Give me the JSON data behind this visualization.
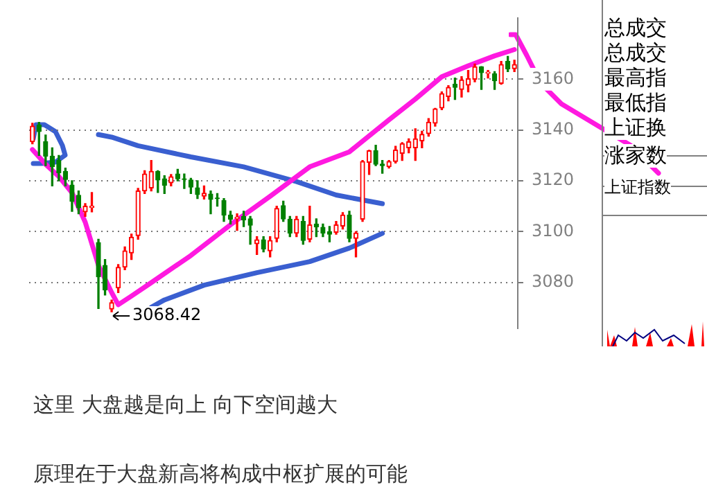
{
  "chart_data": {
    "type": "candlestick",
    "categories": [
      null,
      null,
      null,
      null,
      null,
      null,
      null,
      null,
      null,
      null,
      null,
      null,
      null,
      null,
      null,
      null,
      null,
      null,
      null,
      null,
      null,
      null,
      null,
      null,
      null,
      null,
      null,
      null,
      null,
      null,
      null,
      null,
      null,
      null,
      null,
      null,
      null,
      null,
      null,
      null,
      null,
      null,
      null,
      null,
      null,
      null,
      null,
      null,
      null,
      null,
      null,
      null,
      null,
      null,
      null,
      null,
      null,
      null,
      null,
      null,
      null,
      null,
      null,
      null,
      null,
      null,
      null,
      null,
      null,
      null,
      null,
      null,
      null,
      null
    ],
    "ohlc": [
      [
        3135.4,
        3142.7,
        3134.6,
        3141.5
      ],
      [
        3142,
        3143,
        3130,
        3139.4
      ],
      [
        3135.4,
        3138,
        3126,
        3129.7
      ],
      [
        3129.7,
        3133,
        3118,
        3125.6
      ],
      [
        3128,
        3130,
        3120,
        3123.2
      ],
      [
        3123.7,
        3125,
        3118,
        3120.5
      ],
      [
        3118.3,
        3120,
        3108,
        3111.9
      ],
      [
        3114.3,
        3116,
        3107,
        3109.4
      ],
      [
        3107.8,
        3111,
        3106,
        3110
      ],
      [
        3109.5,
        3115.4,
        3107.8,
        3110
      ],
      [
        3095.7,
        3097,
        3069.7,
        3082.2
      ],
      [
        3086.7,
        3089,
        3075,
        3077
      ],
      [
        3069.5,
        3073,
        3068.42,
        3072
      ],
      [
        3077.8,
        3087,
        3076,
        3085.9
      ],
      [
        3086,
        3094,
        3085,
        3092.4
      ],
      [
        3091.6,
        3099,
        3089,
        3097.8
      ],
      [
        3098.4,
        3117,
        3097,
        3116
      ],
      [
        3116,
        3124,
        3115,
        3122.7
      ],
      [
        3117.2,
        3128,
        3116,
        3123.7
      ],
      [
        3123.7,
        3124,
        3115.4,
        3120.3
      ],
      [
        3120.8,
        3122,
        3115,
        3118.3
      ],
      [
        3119.2,
        3122.5,
        3118,
        3121.6
      ],
      [
        3122.7,
        3124.5,
        3120,
        3120.8
      ],
      [
        3120.8,
        3122.7,
        3117,
        3120.5
      ],
      [
        3120.3,
        3121,
        3115,
        3117.5
      ],
      [
        3117.2,
        3120,
        3113,
        3114.6
      ],
      [
        3114,
        3118,
        3112.8,
        3115.1
      ],
      [
        3114.8,
        3116,
        3107,
        3112.7
      ],
      [
        3113.2,
        3115,
        3110,
        3113
      ],
      [
        3112.2,
        3113,
        3104,
        3106.5
      ],
      [
        3106.5,
        3108,
        3103,
        3104.9
      ],
      [
        3105.2,
        3107,
        3100.5,
        3105.6
      ],
      [
        3106,
        3108,
        3102,
        3104.6
      ],
      [
        3105,
        3106,
        3095,
        3102.5
      ],
      [
        3095.2,
        3098,
        3091,
        3096.8
      ],
      [
        3096.8,
        3098,
        3092,
        3093.2
      ],
      [
        3092.4,
        3098,
        3090,
        3096.5
      ],
      [
        3097.3,
        3110,
        3096,
        3109.1
      ],
      [
        3110.2,
        3112,
        3104,
        3105
      ],
      [
        3104.9,
        3106,
        3098,
        3099.4
      ],
      [
        3099.4,
        3106,
        3098,
        3104.9
      ],
      [
        3104,
        3106,
        3095,
        3096.5
      ],
      [
        3097,
        3110,
        3096,
        3102.6
      ],
      [
        3103,
        3105,
        3098,
        3101.8
      ],
      [
        3101.7,
        3103,
        3098,
        3099.4
      ],
      [
        3100,
        3102,
        3096,
        3099
      ],
      [
        3099.7,
        3104,
        3099,
        3102.6
      ],
      [
        3102.2,
        3107.5,
        3101,
        3106.5
      ],
      [
        3106.5,
        3108,
        3096,
        3097.3
      ],
      [
        3097.3,
        3100,
        3090,
        3099.4
      ],
      [
        3104.9,
        3128,
        3104,
        3127.6
      ],
      [
        3127.3,
        3132,
        3122.5,
        3131.8
      ],
      [
        3131.8,
        3134,
        3126,
        3126.5
      ],
      [
        3126.6,
        3128,
        3123,
        3126
      ],
      [
        3125.6,
        3128,
        3125,
        3127.6
      ],
      [
        3127.6,
        3133.6,
        3127,
        3132.1
      ],
      [
        3130.8,
        3135,
        3128,
        3134.6
      ],
      [
        3133,
        3136.5,
        3131,
        3135.4
      ],
      [
        3133,
        3140.5,
        3128,
        3136.5
      ],
      [
        3135.7,
        3139.5,
        3133,
        3138.3
      ],
      [
        3138.6,
        3144.5,
        3137.6,
        3143.1
      ],
      [
        3142.7,
        3148.5,
        3141.5,
        3148.3
      ],
      [
        3148.7,
        3155,
        3148,
        3154.3
      ],
      [
        3153.2,
        3157.5,
        3151.5,
        3156.8
      ],
      [
        3158,
        3160.5,
        3152,
        3156.8
      ],
      [
        3156,
        3161,
        3153,
        3159.7
      ],
      [
        3157.7,
        3163.5,
        3155,
        3160.2
      ],
      [
        3160,
        3166,
        3159,
        3164.9
      ],
      [
        3164.9,
        3165,
        3156,
        3162.6
      ],
      [
        3162.3,
        3163.5,
        3160.5,
        3162.8
      ],
      [
        3162.1,
        3163,
        3156,
        3159.4
      ],
      [
        3158.4,
        3167,
        3158,
        3165.8
      ],
      [
        3167,
        3169,
        3163,
        3164.1
      ],
      [
        3164.2,
        3167.5,
        3163,
        3165.8
      ]
    ],
    "colors": [
      "#ff0000",
      "#008000",
      "#008000",
      "#008000",
      "#008000",
      "#008000",
      "#008000",
      "#008000",
      "#ff0000",
      "#ff0000",
      "#008000",
      "#008000",
      "#ff0000",
      "#ff0000",
      "#ff0000",
      "#ff0000",
      "#ff0000",
      "#ff0000",
      "#ff0000",
      "#008000",
      "#008000",
      "#ff0000",
      "#008000",
      "#008000",
      "#008000",
      "#008000",
      "#ff0000",
      "#008000",
      "#008000",
      "#008000",
      "#008000",
      "#ff0000",
      "#008000",
      "#008000",
      "#ff0000",
      "#008000",
      "#ff0000",
      "#ff0000",
      "#008000",
      "#008000",
      "#ff0000",
      "#008000",
      "#ff0000",
      "#008000",
      "#008000",
      "#008000",
      "#ff0000",
      "#ff0000",
      "#008000",
      "#ff0000",
      "#ff0000",
      "#ff0000",
      "#008000",
      "#008000",
      "#ff0000",
      "#ff0000",
      "#ff0000",
      "#ff0000",
      "#ff0000",
      "#ff0000",
      "#ff0000",
      "#ff0000",
      "#ff0000",
      "#ff0000",
      "#008000",
      "#ff0000",
      "#ff0000",
      "#ff0000",
      "#008000",
      "#ff0000",
      "#008000",
      "#ff0000",
      "#008000",
      "#ff0000"
    ],
    "series": [
      {
        "type": "line",
        "color": "#ff19e0",
        "values": [
          3132.3,
          null,
          3126.5,
          null,
          3121.7,
          null,
          3115.3,
          null,
          3103.7,
          null,
          3086.7,
          null,
          3076,
          3071.2,
          null,
          3074.6,
          null,
          null,
          3079.9,
          null,
          null,
          null,
          null,
          null,
          3090.6,
          null,
          null,
          null,
          null,
          null,
          3102.7,
          null,
          null,
          null,
          null,
          null,
          3113.9,
          null,
          null,
          null,
          null,
          null,
          3125.5,
          null,
          null,
          null,
          null,
          null,
          3131.4,
          null,
          null,
          null,
          null,
          null,
          3144,
          null,
          null,
          null,
          3152.2,
          null,
          null,
          null,
          3161,
          null,
          null,
          null,
          3165.3,
          null,
          null,
          null,
          3169.2,
          null,
          null,
          3171.7
        ]
      },
      {
        "type": "line",
        "color": "#3a5fd0",
        "values": [
          null,
          null,
          null,
          null,
          null,
          null,
          null,
          null,
          null,
          null,
          3138.2,
          null,
          3137.2,
          null,
          null,
          null,
          3133.8,
          null,
          null,
          null,
          null,
          null,
          null,
          null,
          3129.4,
          null,
          null,
          null,
          null,
          null,
          null,
          null,
          3125.5,
          null,
          null,
          null,
          null,
          null,
          null,
          null,
          3119.7,
          null,
          null,
          null,
          null,
          null,
          3114.4,
          null,
          null,
          null,
          null,
          null,
          null,
          3111,
          null,
          null,
          null,
          null,
          null,
          null,
          null,
          null,
          null,
          null,
          null,
          null,
          null,
          null,
          null,
          null,
          null,
          null,
          null,
          null
        ]
      },
      {
        "type": "line",
        "color": "#3a5fd0",
        "values": [
          null,
          null,
          null,
          null,
          null,
          null,
          null,
          null,
          null,
          null,
          null,
          null,
          null,
          null,
          null,
          null,
          null,
          null,
          3070.2,
          null,
          3073.1,
          null,
          null,
          null,
          null,
          null,
          3078.9,
          null,
          null,
          null,
          null,
          null,
          null,
          null,
          3083.8,
          null,
          null,
          null,
          null,
          null,
          null,
          null,
          3088.2,
          null,
          null,
          null,
          null,
          null,
          3093.5,
          null,
          null,
          null,
          null,
          3099.3,
          null,
          null,
          null,
          null,
          null,
          null,
          null,
          null,
          null,
          null,
          null,
          null,
          null,
          null,
          null,
          null,
          null,
          null,
          null,
          null
        ]
      }
    ],
    "marker": "none",
    "ylim": [
      3062,
      3184
    ],
    "yticks": [
      3080,
      3100,
      3120,
      3140,
      3160
    ],
    "grid": "y",
    "legend": false,
    "tick_labels": "y",
    "annotations": [
      "3068.42",
      "总成交",
      "总成交",
      "最高指",
      "最低指",
      "上证换",
      "涨家数",
      "上证指数",
      "这里 大盘越是向上 向下空间越大",
      "原理在于大盘新高将构成中枢扩展的可能"
    ]
  }
}
